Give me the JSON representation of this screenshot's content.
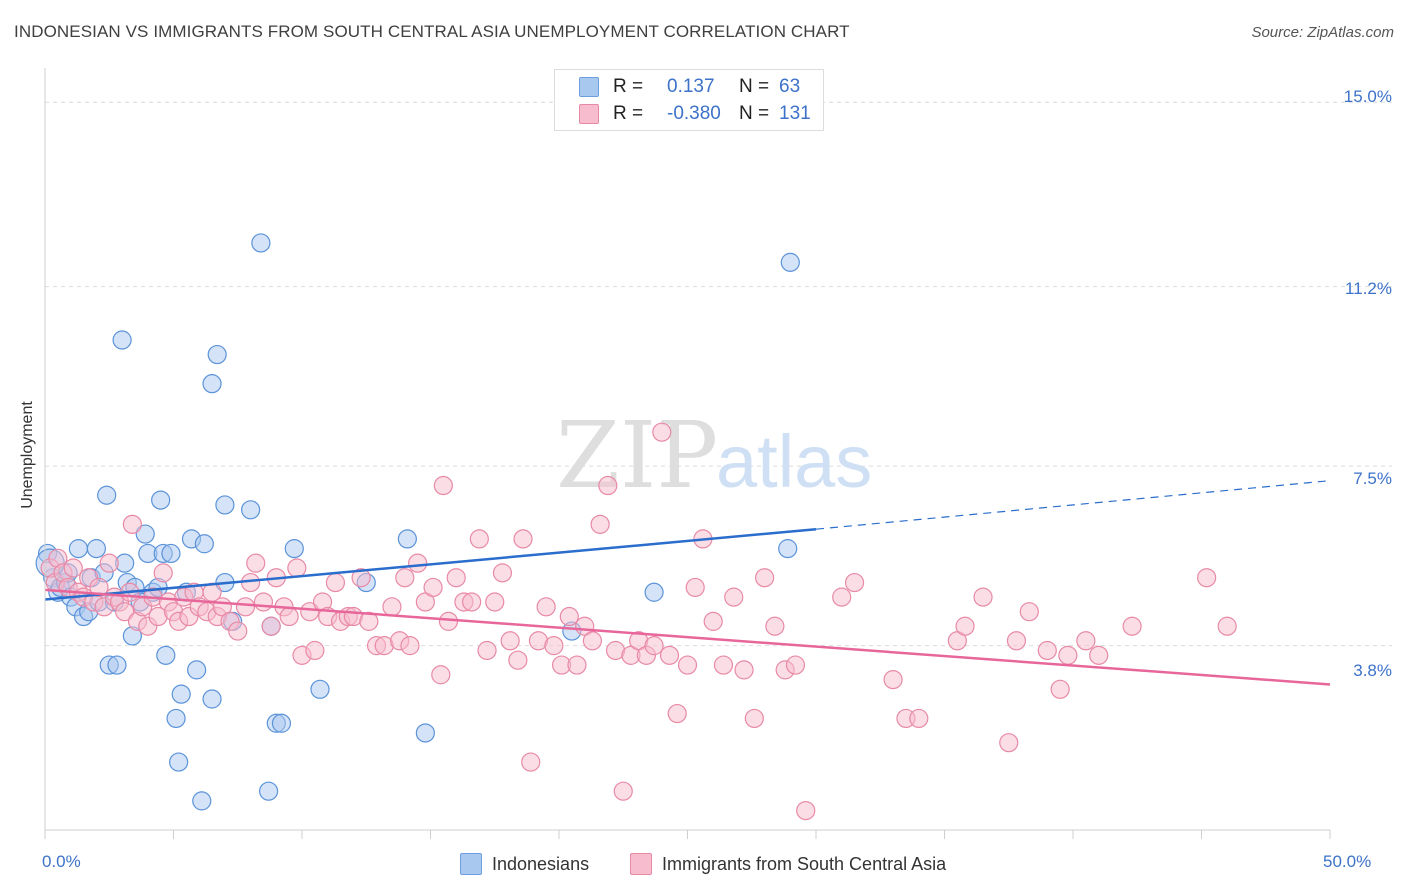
{
  "title": "INDONESIAN VS IMMIGRANTS FROM SOUTH CENTRAL ASIA UNEMPLOYMENT CORRELATION CHART",
  "source": "Source: ZipAtlas.com",
  "watermark": {
    "zip": "ZIP",
    "atlas": "atlas"
  },
  "legend": {
    "r_label": "R =",
    "n_label": "N =",
    "rows": [
      {
        "r": "0.137",
        "n": "63",
        "color": "#a9c8ef",
        "stroke": "#6d9fde"
      },
      {
        "r": "-0.380",
        "n": "131",
        "color": "#f7bccd",
        "stroke": "#e88aa6"
      }
    ]
  },
  "chart_data": {
    "type": "scatter",
    "title": "INDONESIAN VS IMMIGRANTS FROM SOUTH CENTRAL ASIA UNEMPLOYMENT CORRELATION CHART",
    "xlabel": "",
    "ylabel": "Unemployment",
    "xlim": [
      0,
      50
    ],
    "ylim": [
      0,
      15.5
    ],
    "x_tick_labels": [
      "0.0%",
      "50.0%"
    ],
    "y_ticks": [
      3.8,
      7.5,
      11.2,
      15.0
    ],
    "y_tick_labels": [
      "3.8%",
      "7.5%",
      "11.2%",
      "15.0%"
    ],
    "series": [
      {
        "name": "Indonesians",
        "color": "#a9c8ef",
        "stroke": "#5b93d9",
        "line_color": "#2a6dcc",
        "trend": {
          "x0": 0,
          "y0": 4.75,
          "x1": 30,
          "y1": 6.2,
          "dash_to_x": 50,
          "dash_to_y": 7.2
        },
        "points": [
          [
            0.1,
            5.7
          ],
          [
            0.3,
            5.2
          ],
          [
            0.5,
            4.9
          ],
          [
            0.6,
            5.0
          ],
          [
            0.8,
            5.1
          ],
          [
            0.9,
            5.3
          ],
          [
            1.0,
            4.8
          ],
          [
            1.2,
            4.6
          ],
          [
            1.3,
            5.8
          ],
          [
            1.5,
            4.4
          ],
          [
            1.7,
            4.5
          ],
          [
            1.8,
            5.2
          ],
          [
            2.0,
            5.8
          ],
          [
            2.1,
            4.7
          ],
          [
            2.3,
            5.3
          ],
          [
            2.4,
            6.9
          ],
          [
            2.5,
            3.4
          ],
          [
            2.7,
            4.7
          ],
          [
            2.8,
            3.4
          ],
          [
            3.0,
            10.1
          ],
          [
            3.1,
            5.5
          ],
          [
            3.2,
            5.1
          ],
          [
            3.4,
            4.0
          ],
          [
            3.5,
            5.0
          ],
          [
            3.7,
            4.7
          ],
          [
            3.9,
            6.1
          ],
          [
            4.0,
            5.7
          ],
          [
            4.2,
            4.9
          ],
          [
            4.4,
            5.0
          ],
          [
            4.5,
            6.8
          ],
          [
            4.6,
            5.7
          ],
          [
            4.7,
            3.6
          ],
          [
            4.9,
            5.7
          ],
          [
            5.1,
            2.3
          ],
          [
            5.2,
            1.4
          ],
          [
            5.3,
            2.8
          ],
          [
            5.5,
            4.9
          ],
          [
            5.7,
            6.0
          ],
          [
            5.9,
            3.3
          ],
          [
            6.1,
            0.6
          ],
          [
            6.2,
            5.9
          ],
          [
            6.5,
            2.7
          ],
          [
            6.5,
            9.2
          ],
          [
            6.7,
            9.8
          ],
          [
            7.0,
            6.7
          ],
          [
            7.0,
            5.1
          ],
          [
            7.3,
            4.3
          ],
          [
            8.0,
            6.6
          ],
          [
            8.4,
            12.1
          ],
          [
            8.7,
            0.8
          ],
          [
            8.8,
            4.2
          ],
          [
            9.0,
            2.2
          ],
          [
            9.2,
            2.2
          ],
          [
            9.7,
            5.8
          ],
          [
            10.7,
            2.9
          ],
          [
            12.5,
            5.1
          ],
          [
            14.1,
            6.0
          ],
          [
            14.8,
            2.0
          ],
          [
            20.5,
            4.1
          ],
          [
            23.7,
            4.9
          ],
          [
            28.9,
            5.8
          ],
          [
            29.0,
            11.7
          ],
          [
            0.2,
            5.5
          ]
        ]
      },
      {
        "name": "Immigrants from South Central Asia",
        "color": "#f7bccd",
        "stroke": "#e88aa6",
        "line_color": "#e8679a",
        "trend": {
          "x0": 0,
          "y0": 4.95,
          "x1": 50,
          "y1": 3.0
        },
        "points": [
          [
            0.2,
            5.4
          ],
          [
            0.4,
            5.1
          ],
          [
            0.5,
            5.6
          ],
          [
            0.7,
            5.3
          ],
          [
            0.9,
            5.0
          ],
          [
            1.1,
            5.4
          ],
          [
            1.3,
            4.9
          ],
          [
            1.5,
            4.8
          ],
          [
            1.7,
            5.2
          ],
          [
            1.9,
            4.7
          ],
          [
            2.1,
            5.0
          ],
          [
            2.3,
            4.6
          ],
          [
            2.5,
            5.5
          ],
          [
            2.7,
            4.8
          ],
          [
            2.9,
            4.7
          ],
          [
            3.1,
            4.5
          ],
          [
            3.3,
            4.9
          ],
          [
            3.4,
            6.3
          ],
          [
            3.6,
            4.3
          ],
          [
            3.8,
            4.6
          ],
          [
            4.0,
            4.2
          ],
          [
            4.2,
            4.8
          ],
          [
            4.4,
            4.4
          ],
          [
            4.6,
            5.3
          ],
          [
            4.8,
            4.7
          ],
          [
            5.0,
            4.5
          ],
          [
            5.2,
            4.3
          ],
          [
            5.4,
            4.8
          ],
          [
            5.6,
            4.4
          ],
          [
            5.8,
            4.9
          ],
          [
            6.0,
            4.6
          ],
          [
            6.3,
            4.5
          ],
          [
            6.5,
            4.9
          ],
          [
            6.7,
            4.4
          ],
          [
            6.9,
            4.6
          ],
          [
            7.2,
            4.3
          ],
          [
            7.5,
            4.1
          ],
          [
            7.8,
            4.6
          ],
          [
            8.0,
            5.1
          ],
          [
            8.2,
            5.5
          ],
          [
            8.5,
            4.7
          ],
          [
            8.8,
            4.2
          ],
          [
            9.0,
            5.2
          ],
          [
            9.3,
            4.6
          ],
          [
            9.5,
            4.4
          ],
          [
            9.8,
            5.4
          ],
          [
            10.0,
            3.6
          ],
          [
            10.3,
            4.5
          ],
          [
            10.5,
            3.7
          ],
          [
            10.8,
            4.7
          ],
          [
            11.0,
            4.4
          ],
          [
            11.3,
            5.1
          ],
          [
            11.5,
            4.3
          ],
          [
            11.8,
            4.4
          ],
          [
            12.0,
            4.4
          ],
          [
            12.3,
            5.2
          ],
          [
            12.6,
            4.3
          ],
          [
            12.9,
            3.8
          ],
          [
            13.2,
            3.8
          ],
          [
            13.5,
            4.6
          ],
          [
            13.8,
            3.9
          ],
          [
            14.0,
            5.2
          ],
          [
            14.2,
            3.8
          ],
          [
            14.5,
            5.5
          ],
          [
            14.8,
            4.7
          ],
          [
            15.1,
            5.0
          ],
          [
            15.4,
            3.2
          ],
          [
            15.7,
            4.3
          ],
          [
            16.0,
            5.2
          ],
          [
            16.3,
            4.7
          ],
          [
            16.6,
            4.7
          ],
          [
            16.9,
            6.0
          ],
          [
            17.2,
            3.7
          ],
          [
            17.5,
            4.7
          ],
          [
            17.8,
            5.3
          ],
          [
            18.1,
            3.9
          ],
          [
            18.4,
            3.5
          ],
          [
            18.6,
            6.0
          ],
          [
            18.9,
            1.4
          ],
          [
            19.2,
            3.9
          ],
          [
            19.5,
            4.6
          ],
          [
            19.8,
            3.8
          ],
          [
            20.1,
            3.4
          ],
          [
            20.4,
            4.4
          ],
          [
            20.7,
            3.4
          ],
          [
            21.0,
            4.2
          ],
          [
            21.3,
            3.9
          ],
          [
            21.6,
            6.3
          ],
          [
            21.9,
            7.1
          ],
          [
            22.2,
            3.7
          ],
          [
            22.5,
            0.8
          ],
          [
            22.8,
            3.6
          ],
          [
            23.1,
            3.9
          ],
          [
            23.4,
            3.6
          ],
          [
            23.7,
            3.8
          ],
          [
            24.0,
            8.2
          ],
          [
            24.3,
            3.6
          ],
          [
            24.6,
            2.4
          ],
          [
            25.0,
            3.4
          ],
          [
            25.3,
            5.0
          ],
          [
            25.6,
            6.0
          ],
          [
            26.0,
            4.3
          ],
          [
            26.4,
            3.4
          ],
          [
            26.8,
            4.8
          ],
          [
            27.2,
            3.3
          ],
          [
            27.6,
            2.3
          ],
          [
            28.0,
            5.2
          ],
          [
            28.4,
            4.2
          ],
          [
            28.8,
            3.3
          ],
          [
            29.2,
            3.4
          ],
          [
            29.6,
            0.4
          ],
          [
            31.0,
            4.8
          ],
          [
            31.5,
            5.1
          ],
          [
            33.0,
            3.1
          ],
          [
            33.5,
            2.3
          ],
          [
            34.0,
            2.3
          ],
          [
            35.5,
            3.9
          ],
          [
            35.8,
            4.2
          ],
          [
            36.5,
            4.8
          ],
          [
            37.5,
            1.8
          ],
          [
            37.8,
            3.9
          ],
          [
            38.3,
            4.5
          ],
          [
            39.0,
            3.7
          ],
          [
            39.5,
            2.9
          ],
          [
            39.8,
            3.6
          ],
          [
            40.5,
            3.9
          ],
          [
            41.0,
            3.6
          ],
          [
            42.3,
            4.2
          ],
          [
            45.2,
            5.2
          ],
          [
            46.0,
            4.2
          ],
          [
            15.5,
            7.1
          ]
        ]
      }
    ]
  },
  "bottom_legend": [
    {
      "label": "Indonesians",
      "color": "#a9c8ef",
      "stroke": "#6d9fde"
    },
    {
      "label": "Immigrants from South Central Asia",
      "color": "#f7bccd",
      "stroke": "#e88aa6"
    }
  ]
}
